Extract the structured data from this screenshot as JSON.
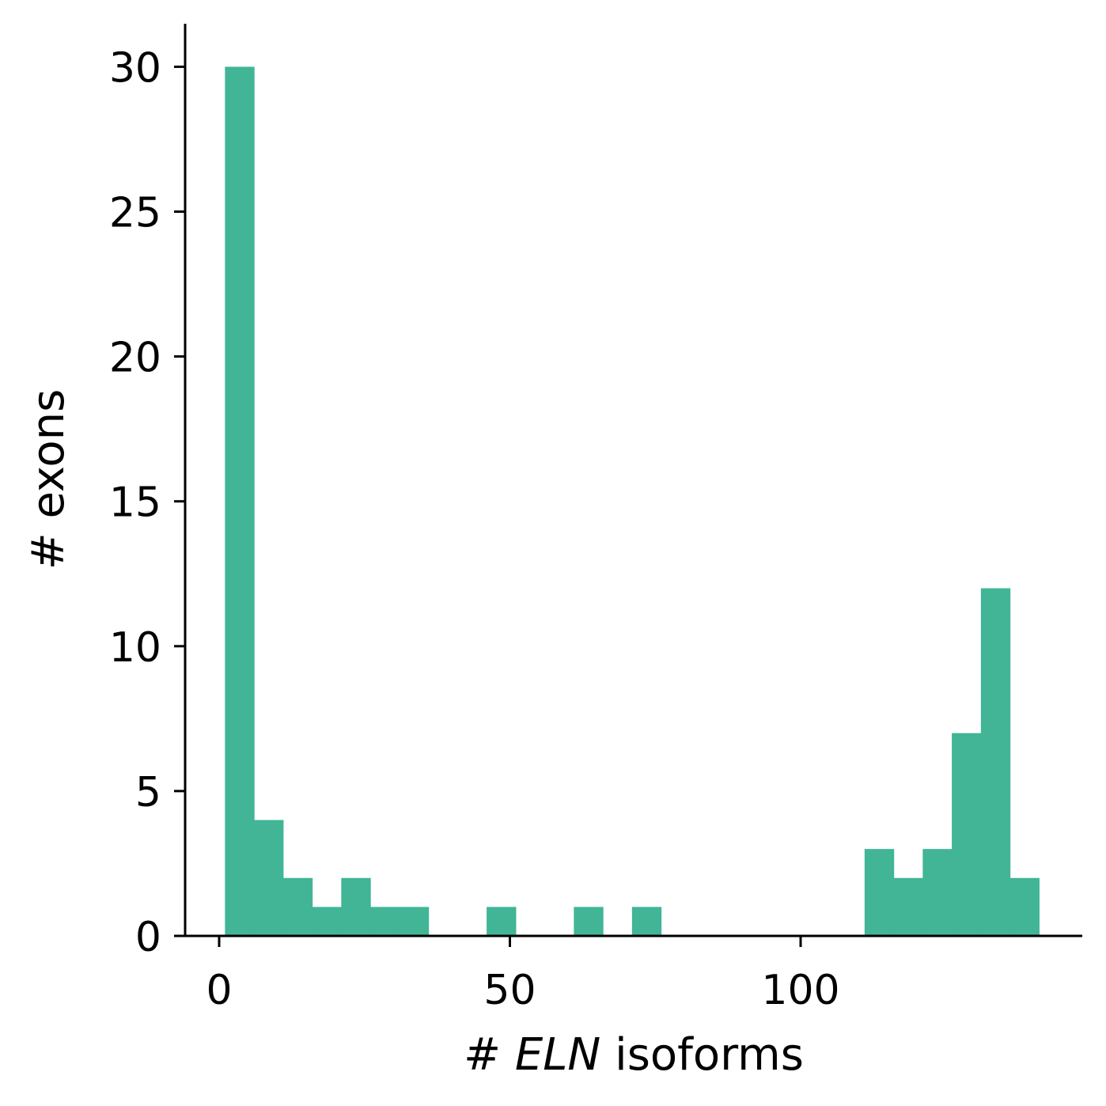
{
  "chart_data": {
    "type": "bar",
    "subtype": "histogram",
    "bar_color": "#41b596",
    "xlabel_parts": [
      {
        "text": "# ",
        "italic": false
      },
      {
        "text": "ELN",
        "italic": true
      },
      {
        "text": " isoforms",
        "italic": false
      }
    ],
    "ylabel": "# exons",
    "xlim": [
      -12,
      148
    ],
    "ylim": [
      0,
      31.5
    ],
    "xticks": [
      0,
      50,
      100
    ],
    "xtick_labels": [
      "0",
      "50",
      "100"
    ],
    "yticks": [
      0,
      5,
      10,
      15,
      20,
      25,
      30
    ],
    "ytick_labels": [
      "0",
      "5",
      "10",
      "15",
      "20",
      "25",
      "30"
    ],
    "grid": false,
    "bins": [
      {
        "x0": 1,
        "x1": 6,
        "count": 30
      },
      {
        "x0": 6,
        "x1": 11,
        "count": 4
      },
      {
        "x0": 11,
        "x1": 16,
        "count": 2
      },
      {
        "x0": 16,
        "x1": 21,
        "count": 1
      },
      {
        "x0": 21,
        "x1": 26,
        "count": 2
      },
      {
        "x0": 26,
        "x1": 31,
        "count": 1
      },
      {
        "x0": 31,
        "x1": 36,
        "count": 1
      },
      {
        "x0": 46,
        "x1": 51,
        "count": 1
      },
      {
        "x0": 61,
        "x1": 66,
        "count": 1
      },
      {
        "x0": 71,
        "x1": 76,
        "count": 1
      },
      {
        "x0": 111,
        "x1": 116,
        "count": 3
      },
      {
        "x0": 116,
        "x1": 121,
        "count": 2
      },
      {
        "x0": 121,
        "x1": 126,
        "count": 3
      },
      {
        "x0": 126,
        "x1": 131,
        "count": 7
      },
      {
        "x0": 131,
        "x1": 136,
        "count": 12
      },
      {
        "x0": 136,
        "x1": 141,
        "count": 2
      }
    ]
  }
}
